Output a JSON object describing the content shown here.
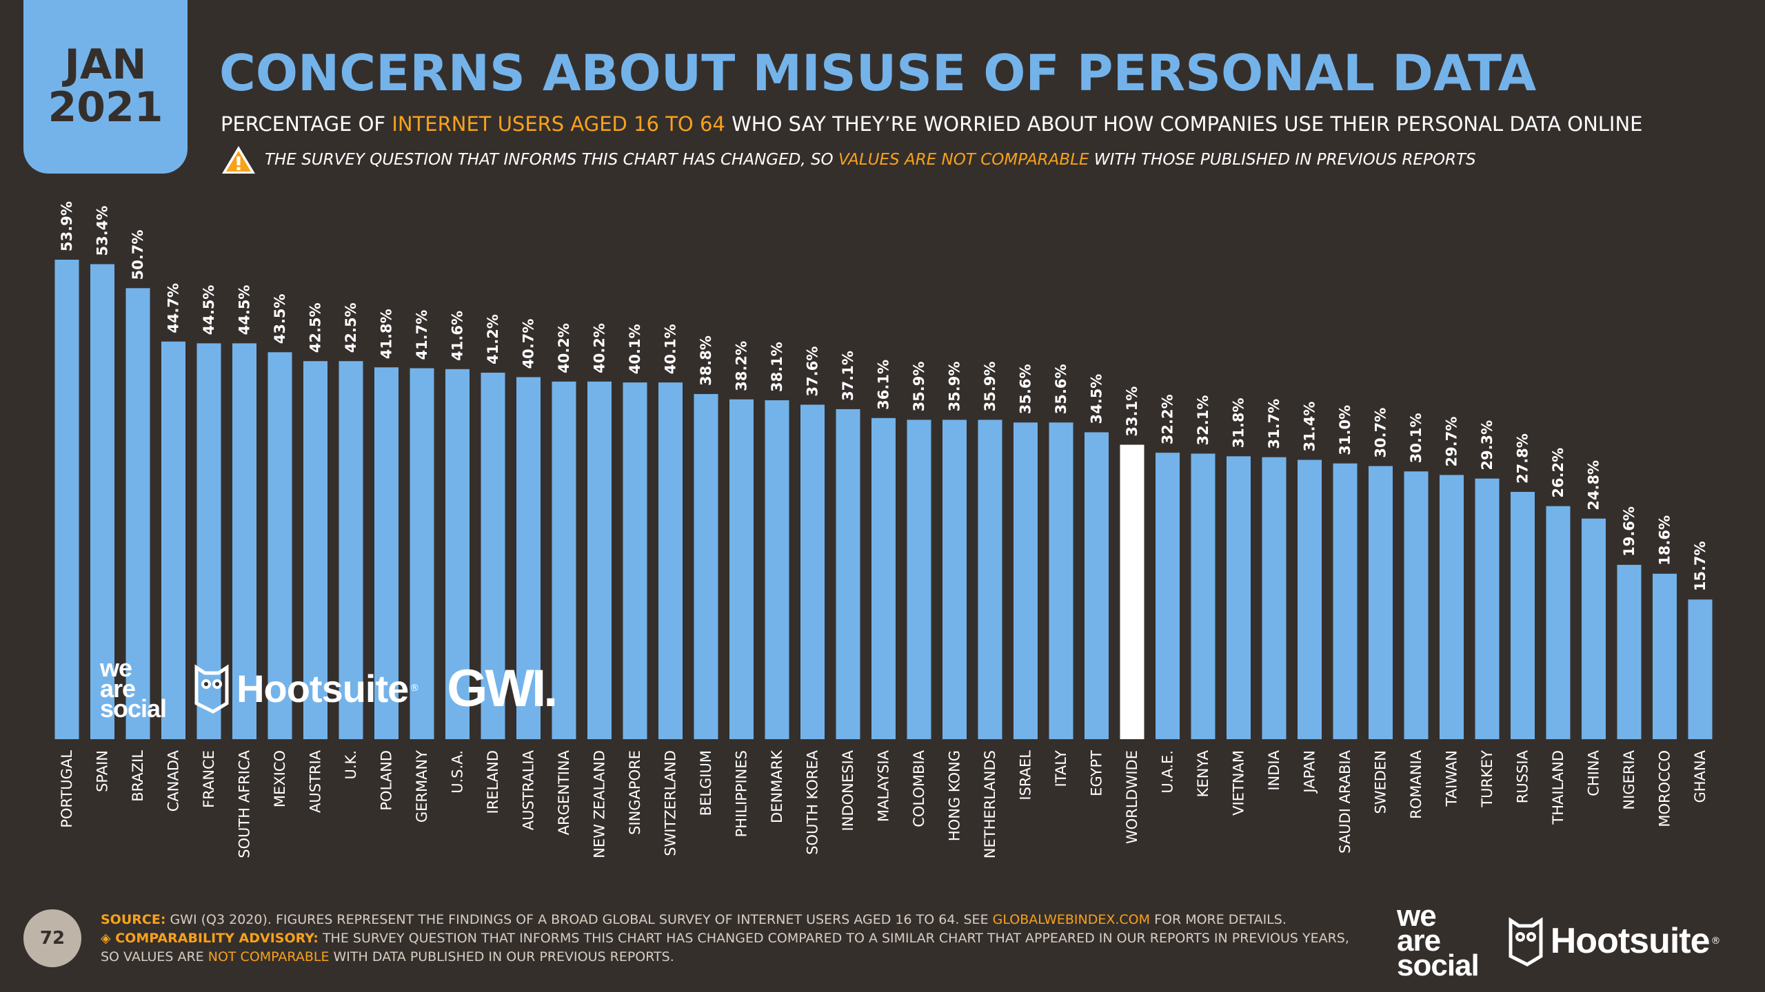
{
  "date": {
    "month": "JAN",
    "year": "2021"
  },
  "title": "CONCERNS ABOUT MISUSE OF PERSONAL DATA",
  "subtitle": {
    "part1": "PERCENTAGE OF ",
    "highlight": "INTERNET USERS AGED 16 TO 64",
    "part2": " WHO SAY THEY’RE WORRIED ABOUT HOW COMPANIES USE THEIR PERSONAL DATA ONLINE"
  },
  "warning": {
    "part1": "THE SURVEY QUESTION THAT INFORMS THIS CHART HAS CHANGED, SO ",
    "highlight": "VALUES ARE NOT COMPARABLE",
    "part2": " WITH THOSE PUBLISHED IN PREVIOUS REPORTS",
    "icon": "warning-icon"
  },
  "logos": {
    "was": [
      "we",
      "are",
      "social"
    ],
    "hootsuite": "Hootsuite",
    "reg": "®",
    "gwi": "GWI."
  },
  "page_number": "72",
  "footer": {
    "source_label": "SOURCE:",
    "source_text": " GWI (Q3 2020). FIGURES REPRESENT THE FINDINGS OF A BROAD GLOBAL SURVEY OF INTERNET USERS AGED 16 TO 64. SEE ",
    "source_link": "GLOBALWEBINDEX.COM",
    "source_end": " FOR MORE DETAILS.",
    "advisory_label": "◈ COMPARABILITY ADVISORY:",
    "advisory_text": " THE SURVEY QUESTION THAT INFORMS THIS CHART HAS CHANGED COMPARED TO A SIMILAR CHART THAT APPEARED IN OUR REPORTS IN PREVIOUS YEARS,",
    "line3_a": "SO VALUES ARE ",
    "line3_highlight": "NOT COMPARABLE",
    "line3_b": " WITH DATA PUBLISHED IN OUR PREVIOUS REPORTS."
  },
  "colors": {
    "bar": "#74b3ea",
    "highlight_bar": "#ffffff",
    "background": "#352f2c",
    "accent": "#f7a21b"
  },
  "chart_data": {
    "type": "bar",
    "title": "CONCERNS ABOUT MISUSE OF PERSONAL DATA",
    "xlabel": "",
    "ylabel": "",
    "ylim": [
      0,
      53.9
    ],
    "highlight": "WORLDWIDE",
    "categories": [
      "PORTUGAL",
      "SPAIN",
      "BRAZIL",
      "CANADA",
      "FRANCE",
      "SOUTH AFRICA",
      "MEXICO",
      "AUSTRIA",
      "U.K.",
      "POLAND",
      "GERMANY",
      "U.S.A.",
      "IRELAND",
      "AUSTRALIA",
      "ARGENTINA",
      "NEW ZEALAND",
      "SINGAPORE",
      "SWITZERLAND",
      "BELGIUM",
      "PHILIPPINES",
      "DENMARK",
      "SOUTH KOREA",
      "INDONESIA",
      "MALAYSIA",
      "COLOMBIA",
      "HONG KONG",
      "NETHERLANDS",
      "ISRAEL",
      "ITALY",
      "EGYPT",
      "WORLDWIDE",
      "U.A.E.",
      "KENYA",
      "VIETNAM",
      "INDIA",
      "JAPAN",
      "SAUDI ARABIA",
      "SWEDEN",
      "ROMANIA",
      "TAIWAN",
      "TURKEY",
      "RUSSIA",
      "THAILAND",
      "CHINA",
      "NIGERIA",
      "MOROCCO",
      "GHANA"
    ],
    "values": [
      53.9,
      53.4,
      50.7,
      44.7,
      44.5,
      44.5,
      43.5,
      42.5,
      42.5,
      41.8,
      41.7,
      41.6,
      41.2,
      40.7,
      40.2,
      40.2,
      40.1,
      40.1,
      38.8,
      38.2,
      38.1,
      37.6,
      37.1,
      36.1,
      35.9,
      35.9,
      35.9,
      35.6,
      35.6,
      34.5,
      33.1,
      32.2,
      32.1,
      31.8,
      31.7,
      31.4,
      31.0,
      30.7,
      30.1,
      29.7,
      29.3,
      27.8,
      26.2,
      24.8,
      19.6,
      18.6,
      15.7
    ],
    "value_labels": [
      "53.9%",
      "53.4%",
      "50.7%",
      "44.7%",
      "44.5%",
      "44.5%",
      "43.5%",
      "42.5%",
      "42.5%",
      "41.8%",
      "41.7%",
      "41.6%",
      "41.2%",
      "40.7%",
      "40.2%",
      "40.2%",
      "40.1%",
      "40.1%",
      "38.8%",
      "38.2%",
      "38.1%",
      "37.6%",
      "37.1%",
      "36.1%",
      "35.9%",
      "35.9%",
      "35.9%",
      "35.6%",
      "35.6%",
      "34.5%",
      "33.1%",
      "32.2%",
      "32.1%",
      "31.8%",
      "31.7%",
      "31.4%",
      "31.0%",
      "30.7%",
      "30.1%",
      "29.7%",
      "29.3%",
      "27.8%",
      "26.2%",
      "24.8%",
      "19.6%",
      "18.6%",
      "15.7%"
    ]
  }
}
